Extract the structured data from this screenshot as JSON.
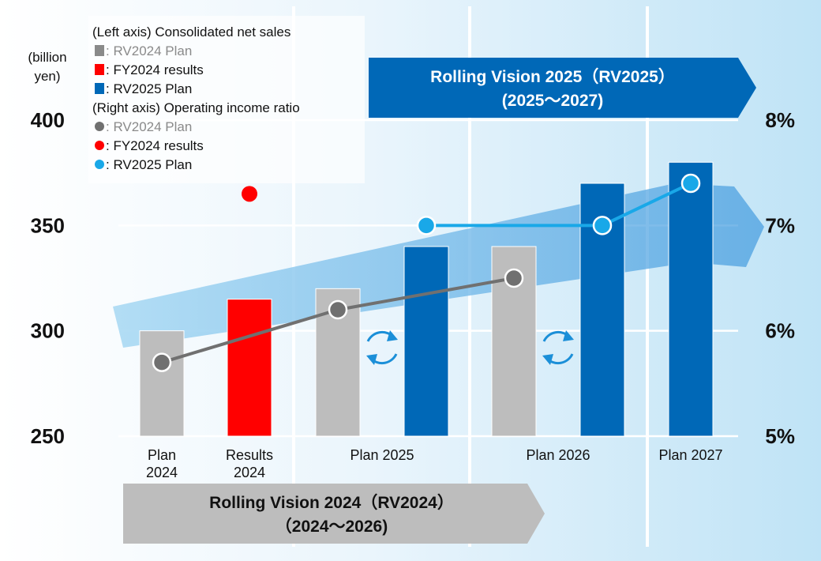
{
  "chart_data": {
    "type": "bar",
    "left_axis": {
      "unit_label": [
        "(billion",
        "yen)"
      ],
      "ticks": [
        "250",
        "300",
        "350",
        "400"
      ],
      "ylim": [
        250,
        400
      ]
    },
    "right_axis": {
      "ticks": [
        "5%",
        "6%",
        "7%",
        "8%"
      ],
      "ylim": [
        5,
        8
      ]
    },
    "categories": [
      [
        "Plan",
        "2024"
      ],
      [
        "Results",
        "2024"
      ],
      [
        "Plan 2025"
      ],
      [
        "Plan 2026"
      ],
      [
        "Plan 2027"
      ]
    ],
    "bars": [
      {
        "series": "RV2024 Plan",
        "category": 0,
        "value": 300,
        "color": "#bdbdbd"
      },
      {
        "series": "FY2024 results",
        "category": 1,
        "value": 315,
        "color": "#ff0000"
      },
      {
        "series": "RV2024 Plan",
        "category": 2,
        "value": 320,
        "color": "#bdbdbd"
      },
      {
        "series": "RV2025 Plan",
        "category": 2,
        "value": 340,
        "color": "#0068b7"
      },
      {
        "series": "RV2024 Plan",
        "category": 3,
        "value": 340,
        "color": "#bdbdbd"
      },
      {
        "series": "RV2025 Plan",
        "category": 3,
        "value": 370,
        "color": "#0068b7"
      },
      {
        "series": "RV2025 Plan",
        "category": 4,
        "value": 380,
        "color": "#0068b7"
      }
    ],
    "lines": [
      {
        "series": "RV2024 Plan",
        "color": "#707070",
        "points": [
          {
            "category": 0,
            "sub": "gray",
            "value": 5.7
          },
          {
            "category": 2,
            "sub": "gray",
            "value": 6.2
          },
          {
            "category": 3,
            "sub": "gray",
            "value": 6.5
          }
        ]
      },
      {
        "series": "RV2025 Plan",
        "color": "#19a8e8",
        "points": [
          {
            "category": 2,
            "sub": "blue",
            "value": 7.0
          },
          {
            "category": 3,
            "sub": "blue",
            "value": 7.0
          },
          {
            "category": 4,
            "sub": "blue",
            "value": 7.4
          }
        ]
      }
    ],
    "points": [
      {
        "series": "FY2024 results",
        "category": 1,
        "sub": "gray",
        "value": 7.3,
        "color": "#ff0000"
      }
    ],
    "legend": {
      "left_heading": "(Left axis) Consolidated net sales",
      "left_items": [
        {
          "label": ": RV2024 Plan",
          "color": "#8a8a8a",
          "marker": "square",
          "muted": true
        },
        {
          "label": ": FY2024 results",
          "color": "#ff0000",
          "marker": "square",
          "muted": false
        },
        {
          "label": ": RV2025 Plan",
          "color": "#0068b7",
          "marker": "square",
          "muted": false
        }
      ],
      "right_heading": "(Right axis) Operating income ratio",
      "right_items": [
        {
          "label": ": RV2024 Plan",
          "color": "#707070",
          "marker": "circle",
          "muted": true
        },
        {
          "label": ": FY2024 results",
          "color": "#ff0000",
          "marker": "circle",
          "muted": false
        },
        {
          "label": ": RV2025 Plan",
          "color": "#19a8e8",
          "marker": "circle",
          "muted": false
        }
      ]
    },
    "banners": {
      "rv2025": [
        "Rolling Vision 2025（RV2025）",
        "(2025～2027)"
      ],
      "rv2024": [
        "Rolling Vision 2024（RV2024）",
        "（2024～2026)"
      ]
    }
  }
}
